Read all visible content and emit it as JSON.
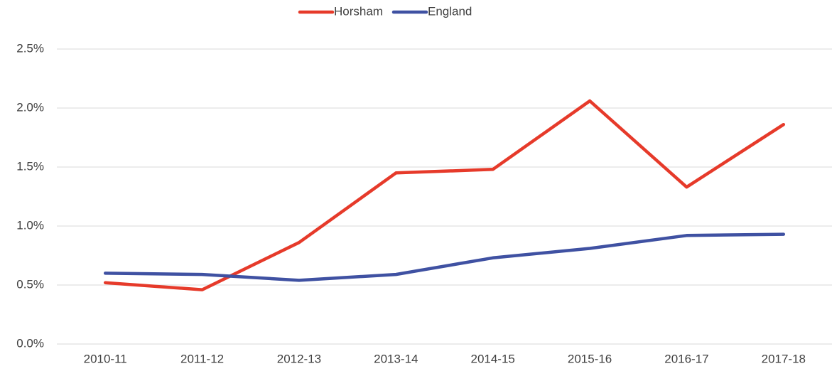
{
  "chart_data": {
    "type": "line",
    "categories": [
      "2010-11",
      "2011-12",
      "2012-13",
      "2013-14",
      "2014-15",
      "2015-16",
      "2016-17",
      "2017-18"
    ],
    "series": [
      {
        "name": "Horsham",
        "color": "#e63a2a",
        "values": [
          0.52,
          0.46,
          0.86,
          1.45,
          1.48,
          2.06,
          1.33,
          1.86
        ]
      },
      {
        "name": "England",
        "color": "#3f51a2",
        "values": [
          0.6,
          0.59,
          0.54,
          0.59,
          0.73,
          0.81,
          0.92,
          0.93
        ]
      }
    ],
    "ylim": [
      0,
      2.5
    ],
    "yticks": [
      {
        "value": 0,
        "label": "0.0%"
      },
      {
        "value": 0.5,
        "label": "0.5%"
      },
      {
        "value": 1,
        "label": "1.0%"
      },
      {
        "value": 1.5,
        "label": "1.5%"
      },
      {
        "value": 2,
        "label": "2.0%"
      },
      {
        "value": 2.5,
        "label": "2.5%"
      }
    ],
    "grid": true,
    "legend": "top"
  }
}
